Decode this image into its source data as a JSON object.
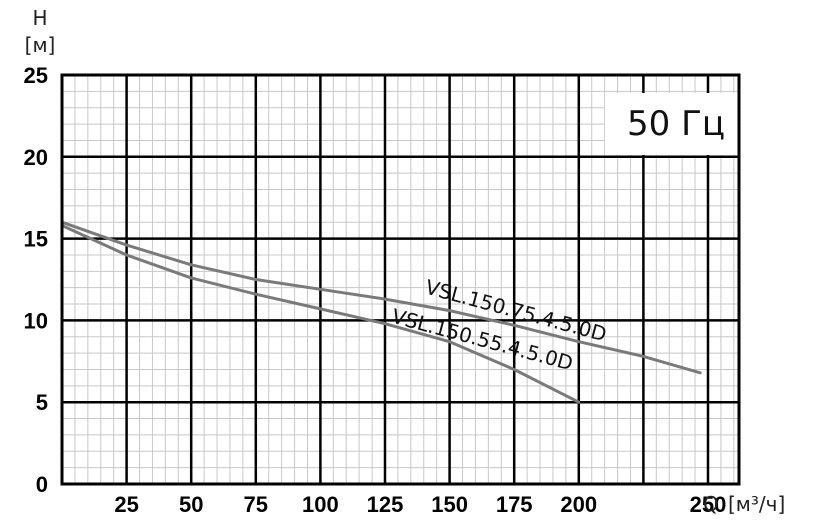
{
  "chart_data": {
    "type": "line",
    "title": "50 Гц",
    "xlabel_symbol": "Q",
    "xlabel_unit": "[м³/ч]",
    "ylabel_symbol": "H",
    "ylabel_unit": "[м]",
    "xlim": [
      0,
      262
    ],
    "ylim": [
      0,
      25
    ],
    "xticks": [
      25,
      50,
      75,
      100,
      125,
      150,
      175,
      200,
      250
    ],
    "yticks": [
      0,
      5,
      10,
      15,
      20,
      25
    ],
    "grid": true,
    "series": [
      {
        "name": "VSL.150.75.4.5.0D",
        "x": [
          0,
          25,
          50,
          75,
          100,
          125,
          150,
          175,
          200,
          225,
          247
        ],
        "y": [
          16.0,
          14.6,
          13.4,
          12.5,
          11.9,
          11.3,
          10.6,
          9.7,
          8.7,
          7.8,
          6.8
        ]
      },
      {
        "name": "VSL.150.55.4.5.0D",
        "x": [
          0,
          25,
          50,
          75,
          100,
          125,
          150,
          175,
          200
        ],
        "y": [
          15.8,
          14.0,
          12.6,
          11.6,
          10.7,
          9.8,
          8.7,
          7.0,
          5.0
        ]
      }
    ]
  }
}
